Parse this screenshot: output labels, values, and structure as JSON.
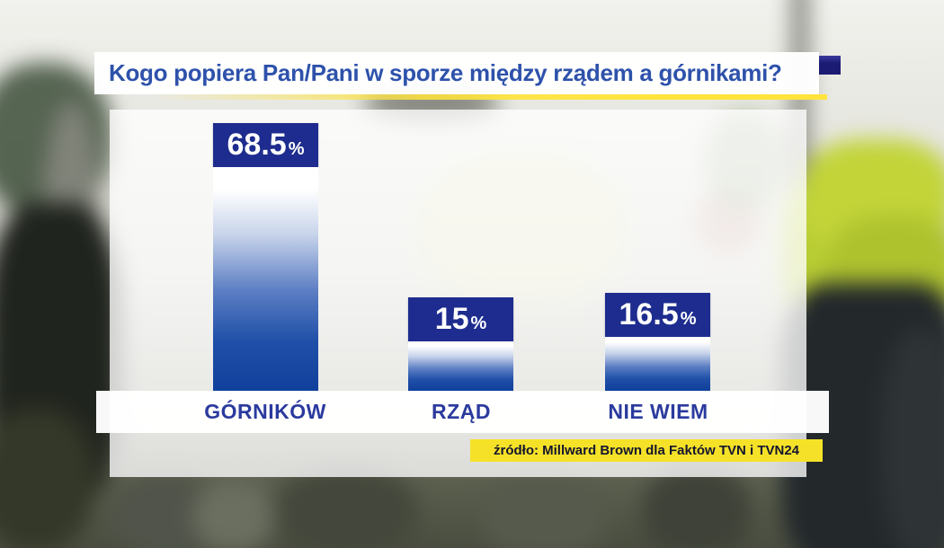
{
  "header": {
    "title": "Kogo popiera Pan/Pani w sporze między rządem a górnikami?"
  },
  "chart_data": {
    "type": "bar",
    "title": "Kogo popiera Pan/Pani w sporze między rządem a górnikami?",
    "categories": [
      "GÓRNIKÓW",
      "RZĄD",
      "NIE WIEM"
    ],
    "values": [
      68.5,
      15,
      16.5
    ],
    "value_labels": [
      "68.5%",
      "15 %",
      "16.5%"
    ],
    "unit": "%",
    "ylim": [
      0,
      100
    ],
    "grid": false,
    "legend": "none",
    "source": "źródło: Millward Brown dla Faktów TVN i TVN24"
  },
  "bars": [
    {
      "num": "68.5",
      "pct": "%",
      "label": "GÓRNIKÓW"
    },
    {
      "num": "15 ",
      "pct": "%",
      "label": "RZĄD"
    },
    {
      "num": "16.5",
      "pct": "%",
      "label": "NIE WIEM"
    }
  ],
  "source_bar": {
    "text": "źródło: Millward Brown dla Faktów TVN i TVN24"
  },
  "colors": {
    "title_text": "#2e52ab",
    "bar_header_bg": "#1d2c8e",
    "bar_deep_blue": "#11409c",
    "category_text": "#2b3a9e",
    "accent_yellow": "#f5e228",
    "underline_yellow": "#ffe43c",
    "corner_square_navy": "#1b1b74",
    "source_text": "#15152e"
  }
}
